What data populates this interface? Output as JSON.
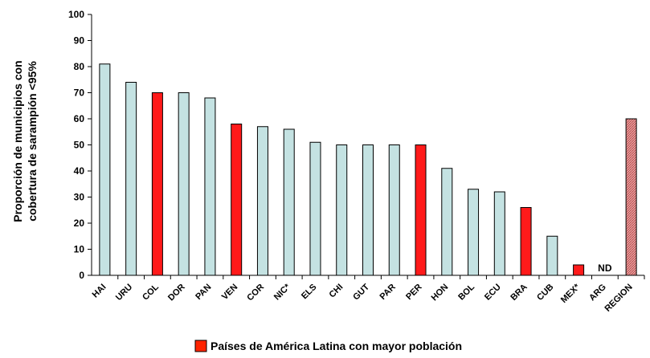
{
  "chart_data": {
    "type": "bar",
    "ylabel_line1": "Proporción de municipios con",
    "ylabel_line2": "cobertura de sarampión <95%",
    "ylim": [
      0,
      100
    ],
    "yticks": [
      0,
      10,
      20,
      30,
      40,
      50,
      60,
      70,
      80,
      90,
      100
    ],
    "categories": [
      "HAI",
      "URU",
      "COL",
      "DOR",
      "PAN",
      "VEN",
      "COR",
      "NIC*",
      "ELS",
      "CHI",
      "GUT",
      "PAR",
      "PER",
      "HON",
      "BOL",
      "ECU",
      "BRA",
      "CUB",
      "MEX*",
      "ARG",
      "REGION"
    ],
    "values": [
      81,
      74,
      70,
      70,
      68,
      58,
      57,
      56,
      51,
      50,
      50,
      50,
      50,
      41,
      33,
      32,
      26,
      15,
      4,
      null,
      60
    ],
    "bar_styles": [
      "default",
      "default",
      "highlight",
      "default",
      "default",
      "highlight",
      "default",
      "default",
      "default",
      "default",
      "default",
      "default",
      "highlight",
      "default",
      "default",
      "default",
      "highlight",
      "default",
      "highlight",
      "none",
      "region"
    ],
    "annotations": [
      {
        "category": "ARG",
        "text": "ND"
      }
    ],
    "legend": {
      "label": "Países de América Latina con mayor población",
      "color": "#ff2400",
      "position": "bottom-center"
    },
    "colors": {
      "default": "#c4e2e2",
      "highlight": "#ff1a1a",
      "region": "#e8a0a0",
      "region_hatch": "#b04040",
      "outline": "#000000"
    },
    "grid": false
  }
}
